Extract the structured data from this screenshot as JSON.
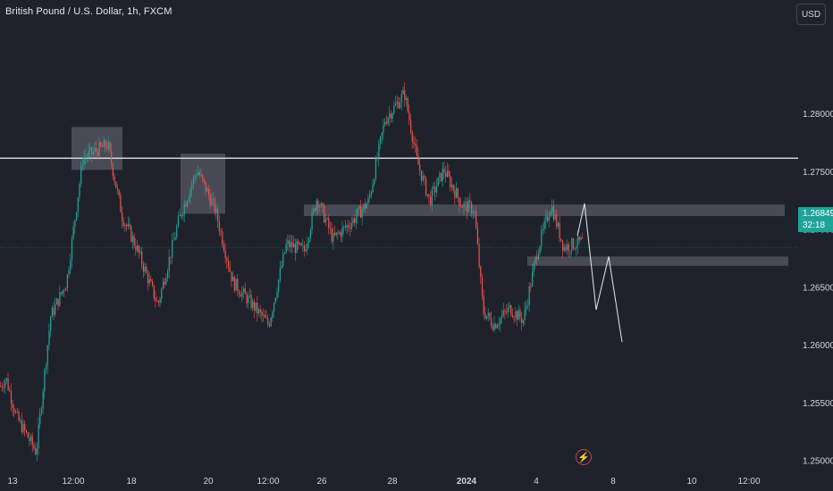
{
  "header": {
    "title": "British Pound / U.S. Dollar, 1h, FXCM",
    "currency": "USD"
  },
  "price_tag": {
    "price": "1.26849",
    "countdown": "32:18"
  },
  "chart_data": {
    "type": "candlestick",
    "title": "British Pound / U.S. Dollar, 1h, FXCM",
    "y_ticks": [
      "1.28000",
      "1.27500",
      "1.27000",
      "1.26500",
      "1.26000",
      "1.25500",
      "1.25000"
    ],
    "y_tick_values": [
      1.28,
      1.275,
      1.27,
      1.265,
      1.26,
      1.255,
      1.25
    ],
    "x_ticks": [
      "13",
      "12:00",
      "18",
      "20",
      "12:00",
      "26",
      "28",
      "2024",
      "4",
      "8",
      "10",
      "12:00"
    ],
    "ylim": [
      1.2492,
      1.2895
    ],
    "grid": false,
    "colors": {
      "up": "#26a69a",
      "down": "#ef5350",
      "background": "#1f222b",
      "level": "#d1d4dc"
    },
    "anchors": [
      {
        "t": 0,
        "p": 1.2565
      },
      {
        "t": 6,
        "p": 1.2572
      },
      {
        "t": 18,
        "p": 1.2538
      },
      {
        "t": 40,
        "p": 1.2508
      },
      {
        "t": 56,
        "p": 1.2625
      },
      {
        "t": 74,
        "p": 1.2655
      },
      {
        "t": 92,
        "p": 1.2762
      },
      {
        "t": 120,
        "p": 1.2774
      },
      {
        "t": 136,
        "p": 1.2712
      },
      {
        "t": 152,
        "p": 1.2685
      },
      {
        "t": 176,
        "p": 1.2635
      },
      {
        "t": 200,
        "p": 1.271
      },
      {
        "t": 220,
        "p": 1.2752
      },
      {
        "t": 240,
        "p": 1.2718
      },
      {
        "t": 260,
        "p": 1.2655
      },
      {
        "t": 282,
        "p": 1.2635
      },
      {
        "t": 300,
        "p": 1.2618
      },
      {
        "t": 320,
        "p": 1.2688
      },
      {
        "t": 340,
        "p": 1.2682
      },
      {
        "t": 354,
        "p": 1.2728
      },
      {
        "t": 372,
        "p": 1.2692
      },
      {
        "t": 394,
        "p": 1.2708
      },
      {
        "t": 412,
        "p": 1.2725
      },
      {
        "t": 430,
        "p": 1.2795
      },
      {
        "t": 452,
        "p": 1.2818
      },
      {
        "t": 466,
        "p": 1.276
      },
      {
        "t": 480,
        "p": 1.2725
      },
      {
        "t": 496,
        "p": 1.2752
      },
      {
        "t": 516,
        "p": 1.2722
      },
      {
        "t": 530,
        "p": 1.2718
      },
      {
        "t": 540,
        "p": 1.263
      },
      {
        "t": 552,
        "p": 1.2618
      },
      {
        "t": 570,
        "p": 1.2632
      },
      {
        "t": 585,
        "p": 1.2622
      },
      {
        "t": 600,
        "p": 1.268
      },
      {
        "t": 616,
        "p": 1.2722
      },
      {
        "t": 630,
        "p": 1.2685
      },
      {
        "t": 652,
        "p": 1.269
      }
    ],
    "levels": [
      {
        "price": 1.2762
      }
    ],
    "zones": [
      {
        "t0": 80,
        "t1": 137,
        "p_top": 1.2789,
        "p_bot": 1.2752
      },
      {
        "t0": 202,
        "t1": 252,
        "p_top": 1.2766,
        "p_bot": 1.2714
      },
      {
        "t0": 340,
        "t1": 878,
        "p_top": 1.2722,
        "p_bot": 1.2712
      },
      {
        "t0": 590,
        "t1": 882,
        "p_top": 1.2677,
        "p_bot": 1.2669
      }
    ],
    "projection": [
      {
        "t": 646,
        "p": 1.2695
      },
      {
        "t": 654,
        "p": 1.2723
      },
      {
        "t": 667,
        "p": 1.2631
      },
      {
        "t": 681,
        "p": 1.2677
      },
      {
        "t": 696,
        "p": 1.2603
      }
    ],
    "current_price": 1.26849
  }
}
